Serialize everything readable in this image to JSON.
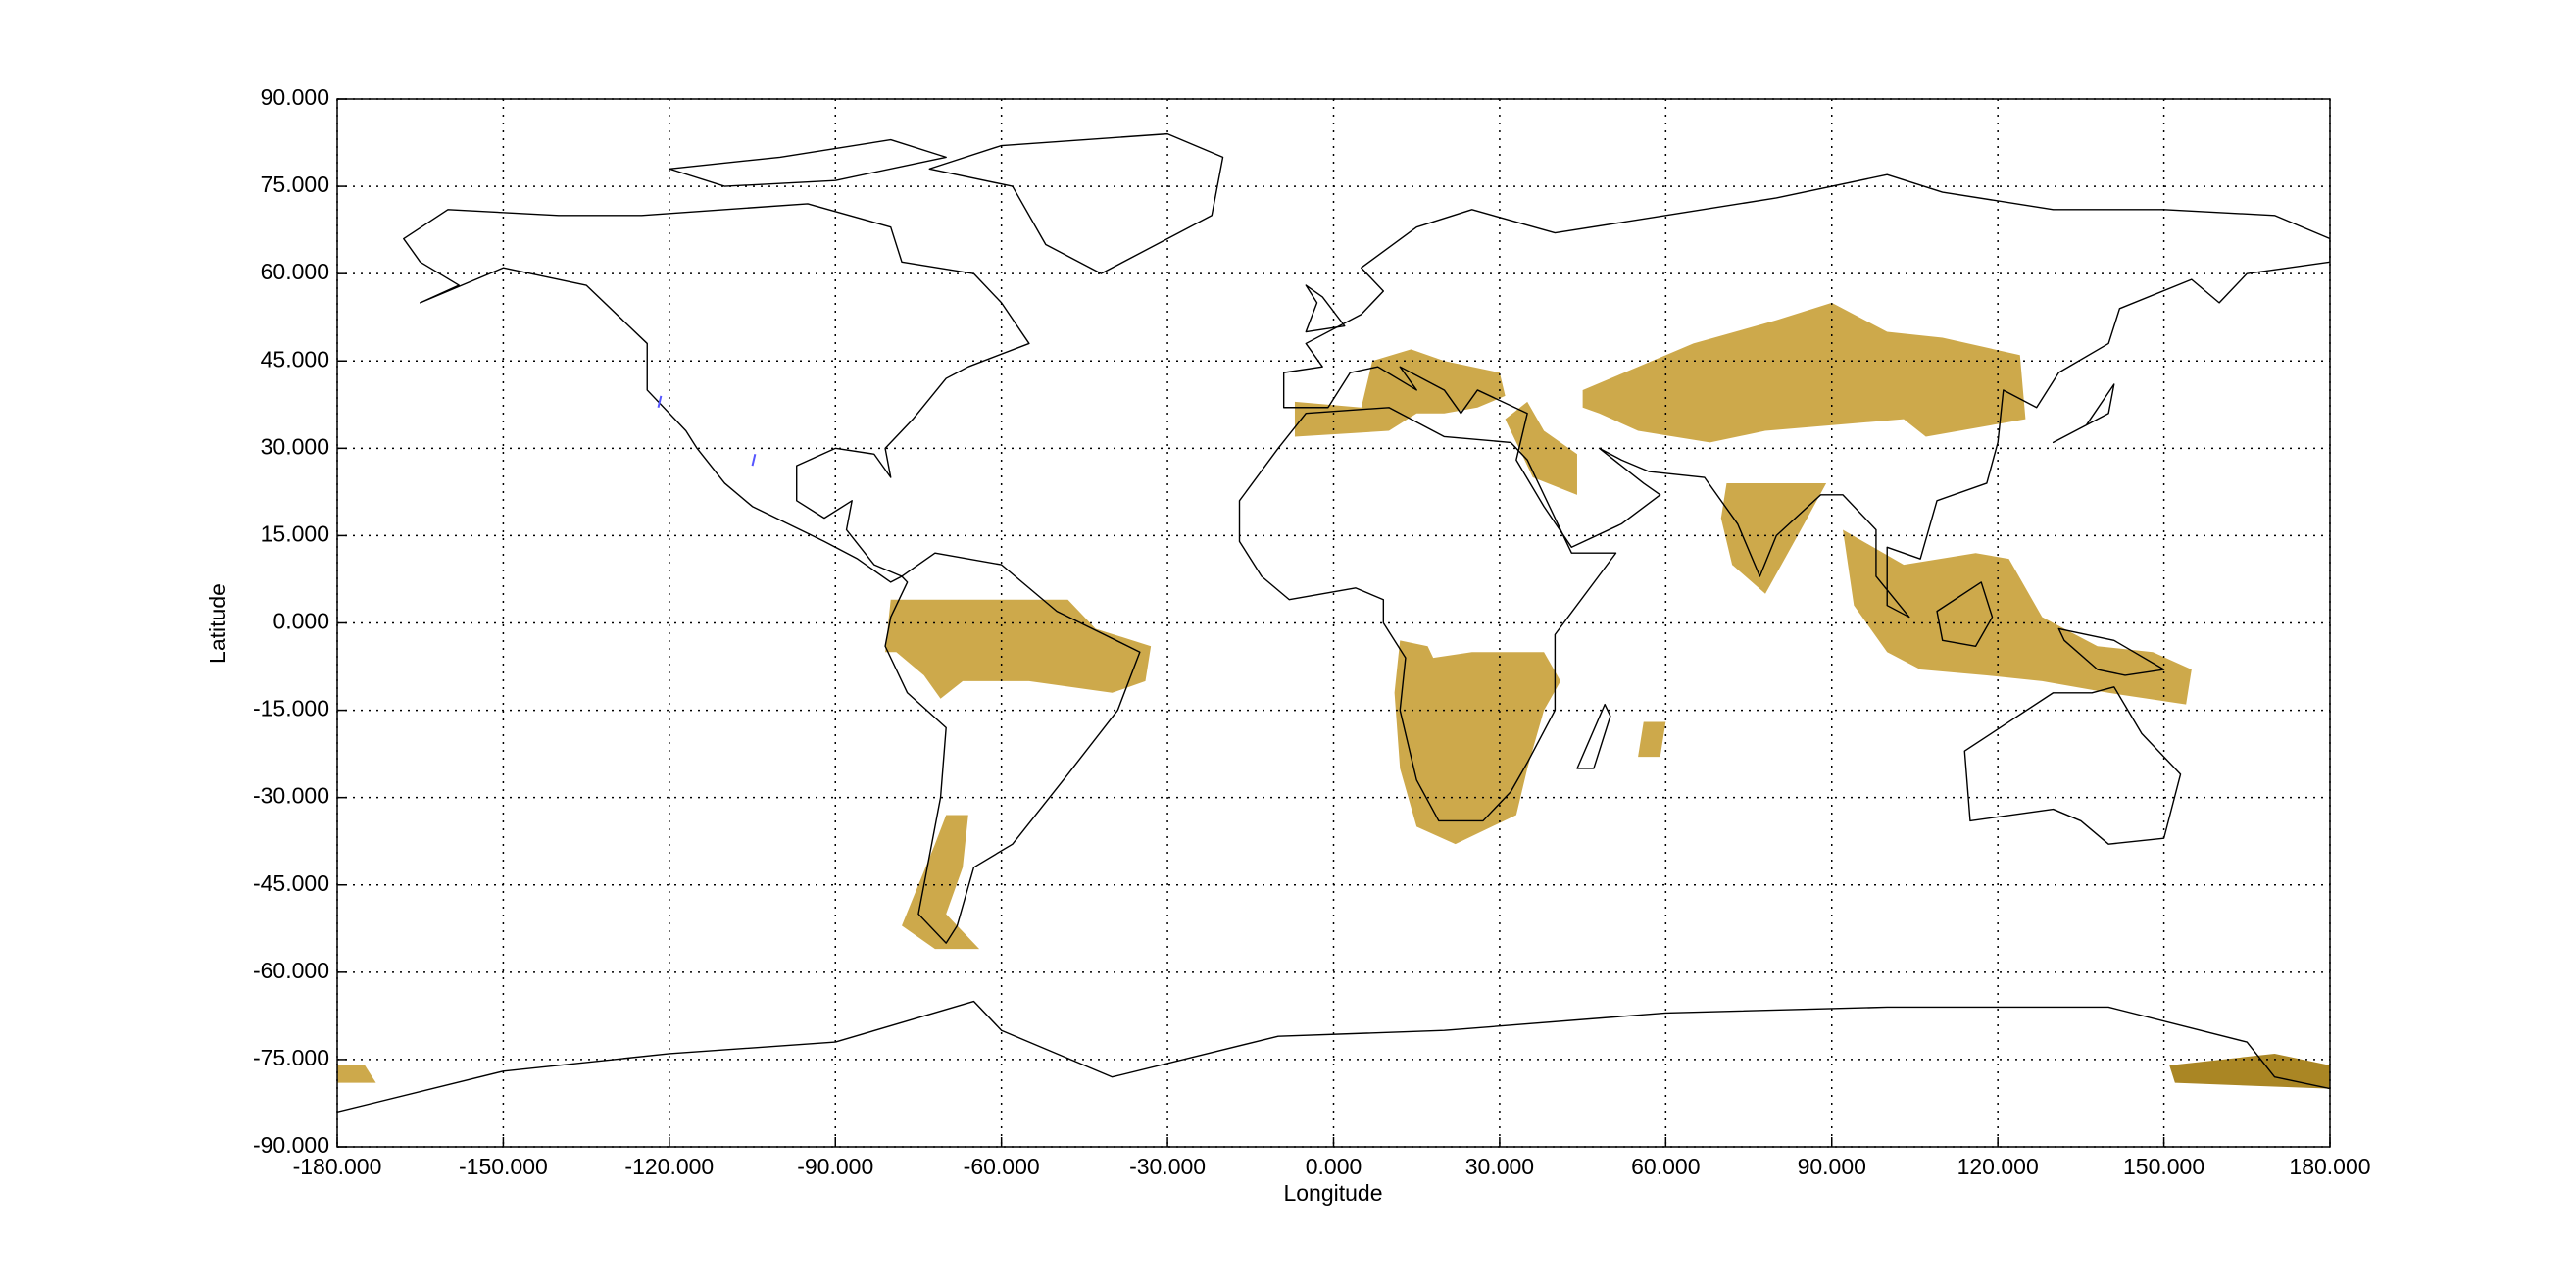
{
  "chart_data": {
    "type": "map",
    "xlabel": "Longitude",
    "ylabel": "Latitude",
    "xlim": [
      -180,
      180
    ],
    "ylim": [
      -90,
      90
    ],
    "grid": true,
    "xticks": [
      {
        "value": -180,
        "label": "-180.000"
      },
      {
        "value": -150,
        "label": "-150.000"
      },
      {
        "value": -120,
        "label": "-120.000"
      },
      {
        "value": -90,
        "label": "-90.000"
      },
      {
        "value": -60,
        "label": "-60.000"
      },
      {
        "value": -30,
        "label": "-30.000"
      },
      {
        "value": 0,
        "label": "0.000"
      },
      {
        "value": 30,
        "label": "30.000"
      },
      {
        "value": 60,
        "label": "60.000"
      },
      {
        "value": 90,
        "label": "90.000"
      },
      {
        "value": 120,
        "label": "120.000"
      },
      {
        "value": 150,
        "label": "150.000"
      },
      {
        "value": 180,
        "label": "180.000"
      }
    ],
    "yticks": [
      {
        "value": -90,
        "label": "-90.000"
      },
      {
        "value": -75,
        "label": "-75.000"
      },
      {
        "value": -60,
        "label": "-60.000"
      },
      {
        "value": -45,
        "label": "-45.000"
      },
      {
        "value": -30,
        "label": "-30.000"
      },
      {
        "value": -15,
        "label": "-15.000"
      },
      {
        "value": 0,
        "label": "0.000"
      },
      {
        "value": 15,
        "label": "15.000"
      },
      {
        "value": 30,
        "label": "30.000"
      },
      {
        "value": 45,
        "label": "45.000"
      },
      {
        "value": 60,
        "label": "60.000"
      },
      {
        "value": 75,
        "label": "75.000"
      },
      {
        "value": 90,
        "label": "90.000"
      }
    ]
  }
}
